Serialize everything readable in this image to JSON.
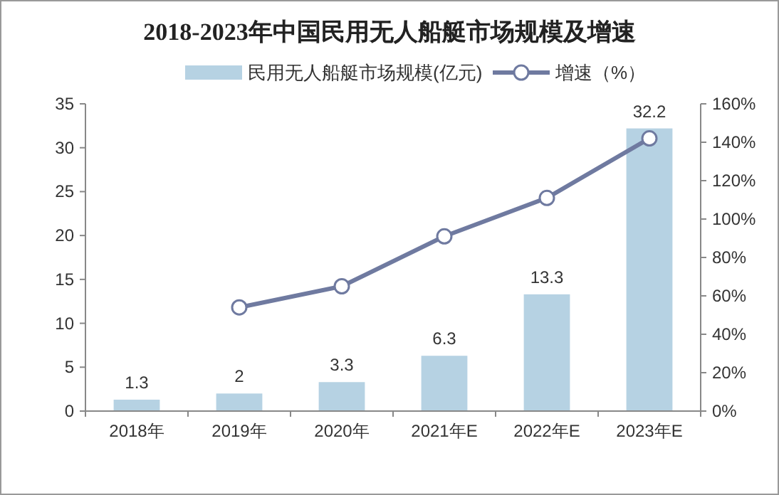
{
  "chart_data": {
    "type": "bar",
    "title": "2018-2023年中国民用无人船艇市场规模及增速",
    "categories": [
      "2018年",
      "2019年",
      "2020年",
      "2021年E",
      "2022年E",
      "2023年E"
    ],
    "series": [
      {
        "name": "民用无人船艇市场规模(亿元)",
        "color": "#b6d2e3",
        "values": [
          1.3,
          2,
          3.3,
          6.3,
          13.3,
          32.2
        ],
        "data_labels": true
      },
      {
        "name": "增速（%）",
        "type": "line",
        "axis": "y2",
        "color": "#6f7aa0",
        "marker": "circle",
        "values": [
          null,
          54,
          65,
          91,
          111,
          142
        ]
      }
    ],
    "ylim": [
      0,
      35
    ],
    "yticks": [
      0,
      5,
      10,
      15,
      20,
      25,
      30,
      35
    ],
    "y2lim": [
      0,
      160
    ],
    "y2ticks": [
      {
        "value": 0,
        "label": "0%"
      },
      {
        "value": 20,
        "label": "20%"
      },
      {
        "value": 40,
        "label": "40%"
      },
      {
        "value": 60,
        "label": "60%"
      },
      {
        "value": 80,
        "label": "80%"
      },
      {
        "value": 100,
        "label": "100%"
      },
      {
        "value": 120,
        "label": "120%"
      },
      {
        "value": 140,
        "label": "140%"
      },
      {
        "value": 160,
        "label": "160%"
      }
    ],
    "legend": "top",
    "grid": false
  }
}
